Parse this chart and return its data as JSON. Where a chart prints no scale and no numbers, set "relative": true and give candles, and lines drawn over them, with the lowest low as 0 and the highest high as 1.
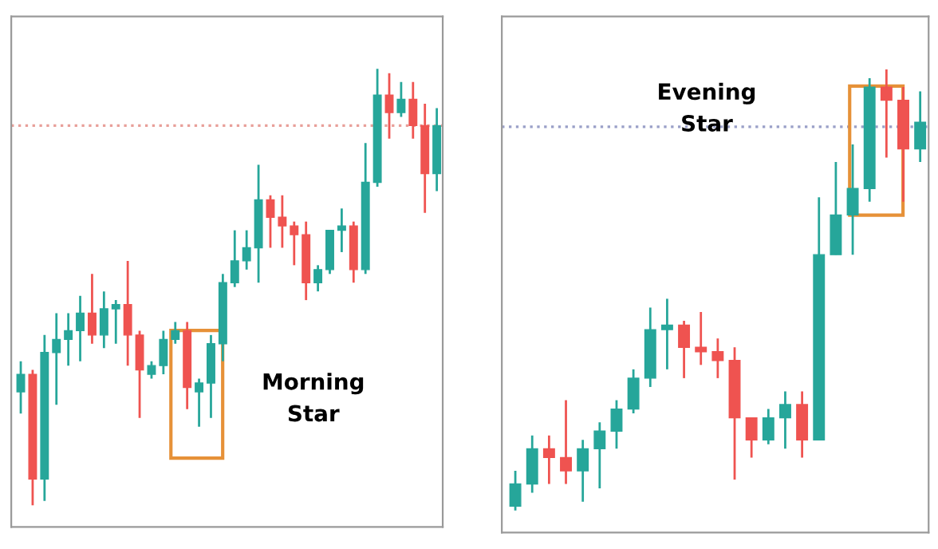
{
  "chart_data": [
    {
      "type": "candlestick",
      "relative": true,
      "categories": [
        null,
        null,
        null,
        null,
        null,
        null,
        null,
        null,
        null,
        null,
        null,
        null,
        null,
        null,
        null,
        null,
        null,
        null,
        null,
        null,
        null,
        null,
        null,
        null,
        null,
        null,
        null,
        null,
        null,
        null,
        null,
        null,
        null,
        null,
        null,
        null
      ],
      "ohlc": [
        [
          0.26,
          0.33,
          0.21,
          0.3
        ],
        [
          0.3,
          0.31,
          0.0,
          0.06
        ],
        [
          0.06,
          0.39,
          0.01,
          0.35
        ],
        [
          0.35,
          0.44,
          0.23,
          0.38
        ],
        [
          0.38,
          0.44,
          0.32,
          0.4
        ],
        [
          0.4,
          0.48,
          0.33,
          0.44
        ],
        [
          0.44,
          0.53,
          0.37,
          0.39
        ],
        [
          0.39,
          0.49,
          0.36,
          0.45
        ],
        [
          0.45,
          0.47,
          0.37,
          0.46
        ],
        [
          0.46,
          0.56,
          0.32,
          0.39
        ],
        [
          0.39,
          0.4,
          0.2,
          0.31
        ],
        [
          0.3,
          0.33,
          0.29,
          0.32
        ],
        [
          0.32,
          0.4,
          0.3,
          0.38
        ],
        [
          0.38,
          0.42,
          0.37,
          0.4
        ],
        [
          0.4,
          0.42,
          0.22,
          0.27
        ],
        [
          0.26,
          0.29,
          0.18,
          0.28
        ],
        [
          0.28,
          0.39,
          0.2,
          0.37
        ],
        [
          0.37,
          0.53,
          0.33,
          0.51
        ],
        [
          0.51,
          0.63,
          0.5,
          0.56
        ],
        [
          0.56,
          0.63,
          0.54,
          0.59
        ],
        [
          0.59,
          0.78,
          0.51,
          0.7
        ],
        [
          0.7,
          0.71,
          0.59,
          0.66
        ],
        [
          0.66,
          0.71,
          0.59,
          0.64
        ],
        [
          0.64,
          0.65,
          0.55,
          0.62
        ],
        [
          0.62,
          0.65,
          0.47,
          0.51
        ],
        [
          0.51,
          0.55,
          0.49,
          0.54
        ],
        [
          0.54,
          0.63,
          0.53,
          0.63
        ],
        [
          0.63,
          0.68,
          0.58,
          0.64
        ],
        [
          0.64,
          0.65,
          0.51,
          0.54
        ],
        [
          0.54,
          0.83,
          0.53,
          0.74
        ],
        [
          0.74,
          1.0,
          0.73,
          0.94
        ],
        [
          0.94,
          0.99,
          0.84,
          0.9
        ],
        [
          0.9,
          0.97,
          0.89,
          0.93
        ],
        [
          0.93,
          0.97,
          0.84,
          0.87
        ],
        [
          0.87,
          0.92,
          0.67,
          0.76
        ],
        [
          0.76,
          0.91,
          0.72,
          0.87
        ]
      ],
      "colors": [
        "#26a69a",
        "#ef5350",
        "#26a69a",
        "#26a69a",
        "#26a69a",
        "#26a69a",
        "#ef5350",
        "#26a69a",
        "#26a69a",
        "#ef5350",
        "#ef5350",
        "#26a69a",
        "#26a69a",
        "#26a69a",
        "#ef5350",
        "#26a69a",
        "#26a69a",
        "#26a69a",
        "#26a69a",
        "#26a69a",
        "#26a69a",
        "#ef5350",
        "#ef5350",
        "#ef5350",
        "#ef5350",
        "#26a69a",
        "#26a69a",
        "#26a69a",
        "#ef5350",
        "#26a69a",
        "#26a69a",
        "#ef5350",
        "#26a69a",
        "#ef5350",
        "#ef5350",
        "#26a69a"
      ],
      "ref_lines": [
        {
          "axis": "y",
          "value": 0.87,
          "color": "#e8a09a",
          "line_style": "dotted"
        }
      ],
      "annotations": [
        "Morning\nStar"
      ]
    },
    {
      "type": "candlestick",
      "relative": true,
      "categories": [
        null,
        null,
        null,
        null,
        null,
        null,
        null,
        null,
        null,
        null,
        null,
        null,
        null,
        null,
        null,
        null,
        null,
        null,
        null,
        null,
        null,
        null,
        null,
        null,
        null
      ],
      "ohlc": [
        [
          0.01,
          0.09,
          0.0,
          0.06
        ],
        [
          0.06,
          0.17,
          0.04,
          0.14
        ],
        [
          0.14,
          0.17,
          0.06,
          0.12
        ],
        [
          0.12,
          0.25,
          0.06,
          0.09
        ],
        [
          0.09,
          0.16,
          0.02,
          0.14
        ],
        [
          0.14,
          0.2,
          0.05,
          0.18
        ],
        [
          0.18,
          0.25,
          0.14,
          0.23
        ],
        [
          0.23,
          0.32,
          0.22,
          0.3
        ],
        [
          0.3,
          0.46,
          0.28,
          0.41
        ],
        [
          0.41,
          0.48,
          0.32,
          0.42
        ],
        [
          0.42,
          0.43,
          0.3,
          0.37
        ],
        [
          0.37,
          0.45,
          0.33,
          0.36
        ],
        [
          0.36,
          0.39,
          0.3,
          0.34
        ],
        [
          0.34,
          0.37,
          0.07,
          0.21
        ],
        [
          0.21,
          0.21,
          0.12,
          0.16
        ],
        [
          0.16,
          0.23,
          0.15,
          0.21
        ],
        [
          0.21,
          0.27,
          0.14,
          0.24
        ],
        [
          0.24,
          0.27,
          0.12,
          0.16
        ],
        [
          0.16,
          0.71,
          0.16,
          0.58
        ],
        [
          0.58,
          0.79,
          0.58,
          0.67
        ],
        [
          0.67,
          0.83,
          0.58,
          0.73
        ],
        [
          0.73,
          0.98,
          0.7,
          0.96
        ],
        [
          0.96,
          1.0,
          0.8,
          0.93
        ],
        [
          0.93,
          0.96,
          0.7,
          0.82
        ],
        [
          0.82,
          0.95,
          0.79,
          0.88
        ]
      ],
      "colors": [
        "#26a69a",
        "#26a69a",
        "#ef5350",
        "#ef5350",
        "#26a69a",
        "#26a69a",
        "#26a69a",
        "#26a69a",
        "#26a69a",
        "#26a69a",
        "#ef5350",
        "#ef5350",
        "#ef5350",
        "#ef5350",
        "#ef5350",
        "#26a69a",
        "#26a69a",
        "#ef5350",
        "#26a69a",
        "#26a69a",
        "#26a69a",
        "#26a69a",
        "#ef5350",
        "#ef5350",
        "#26a69a"
      ],
      "ref_lines": [
        {
          "axis": "y",
          "value": 0.87,
          "color": "#9aa0c8",
          "line_style": "dotted"
        }
      ],
      "annotations": [
        "Evening\nStar"
      ]
    }
  ]
}
